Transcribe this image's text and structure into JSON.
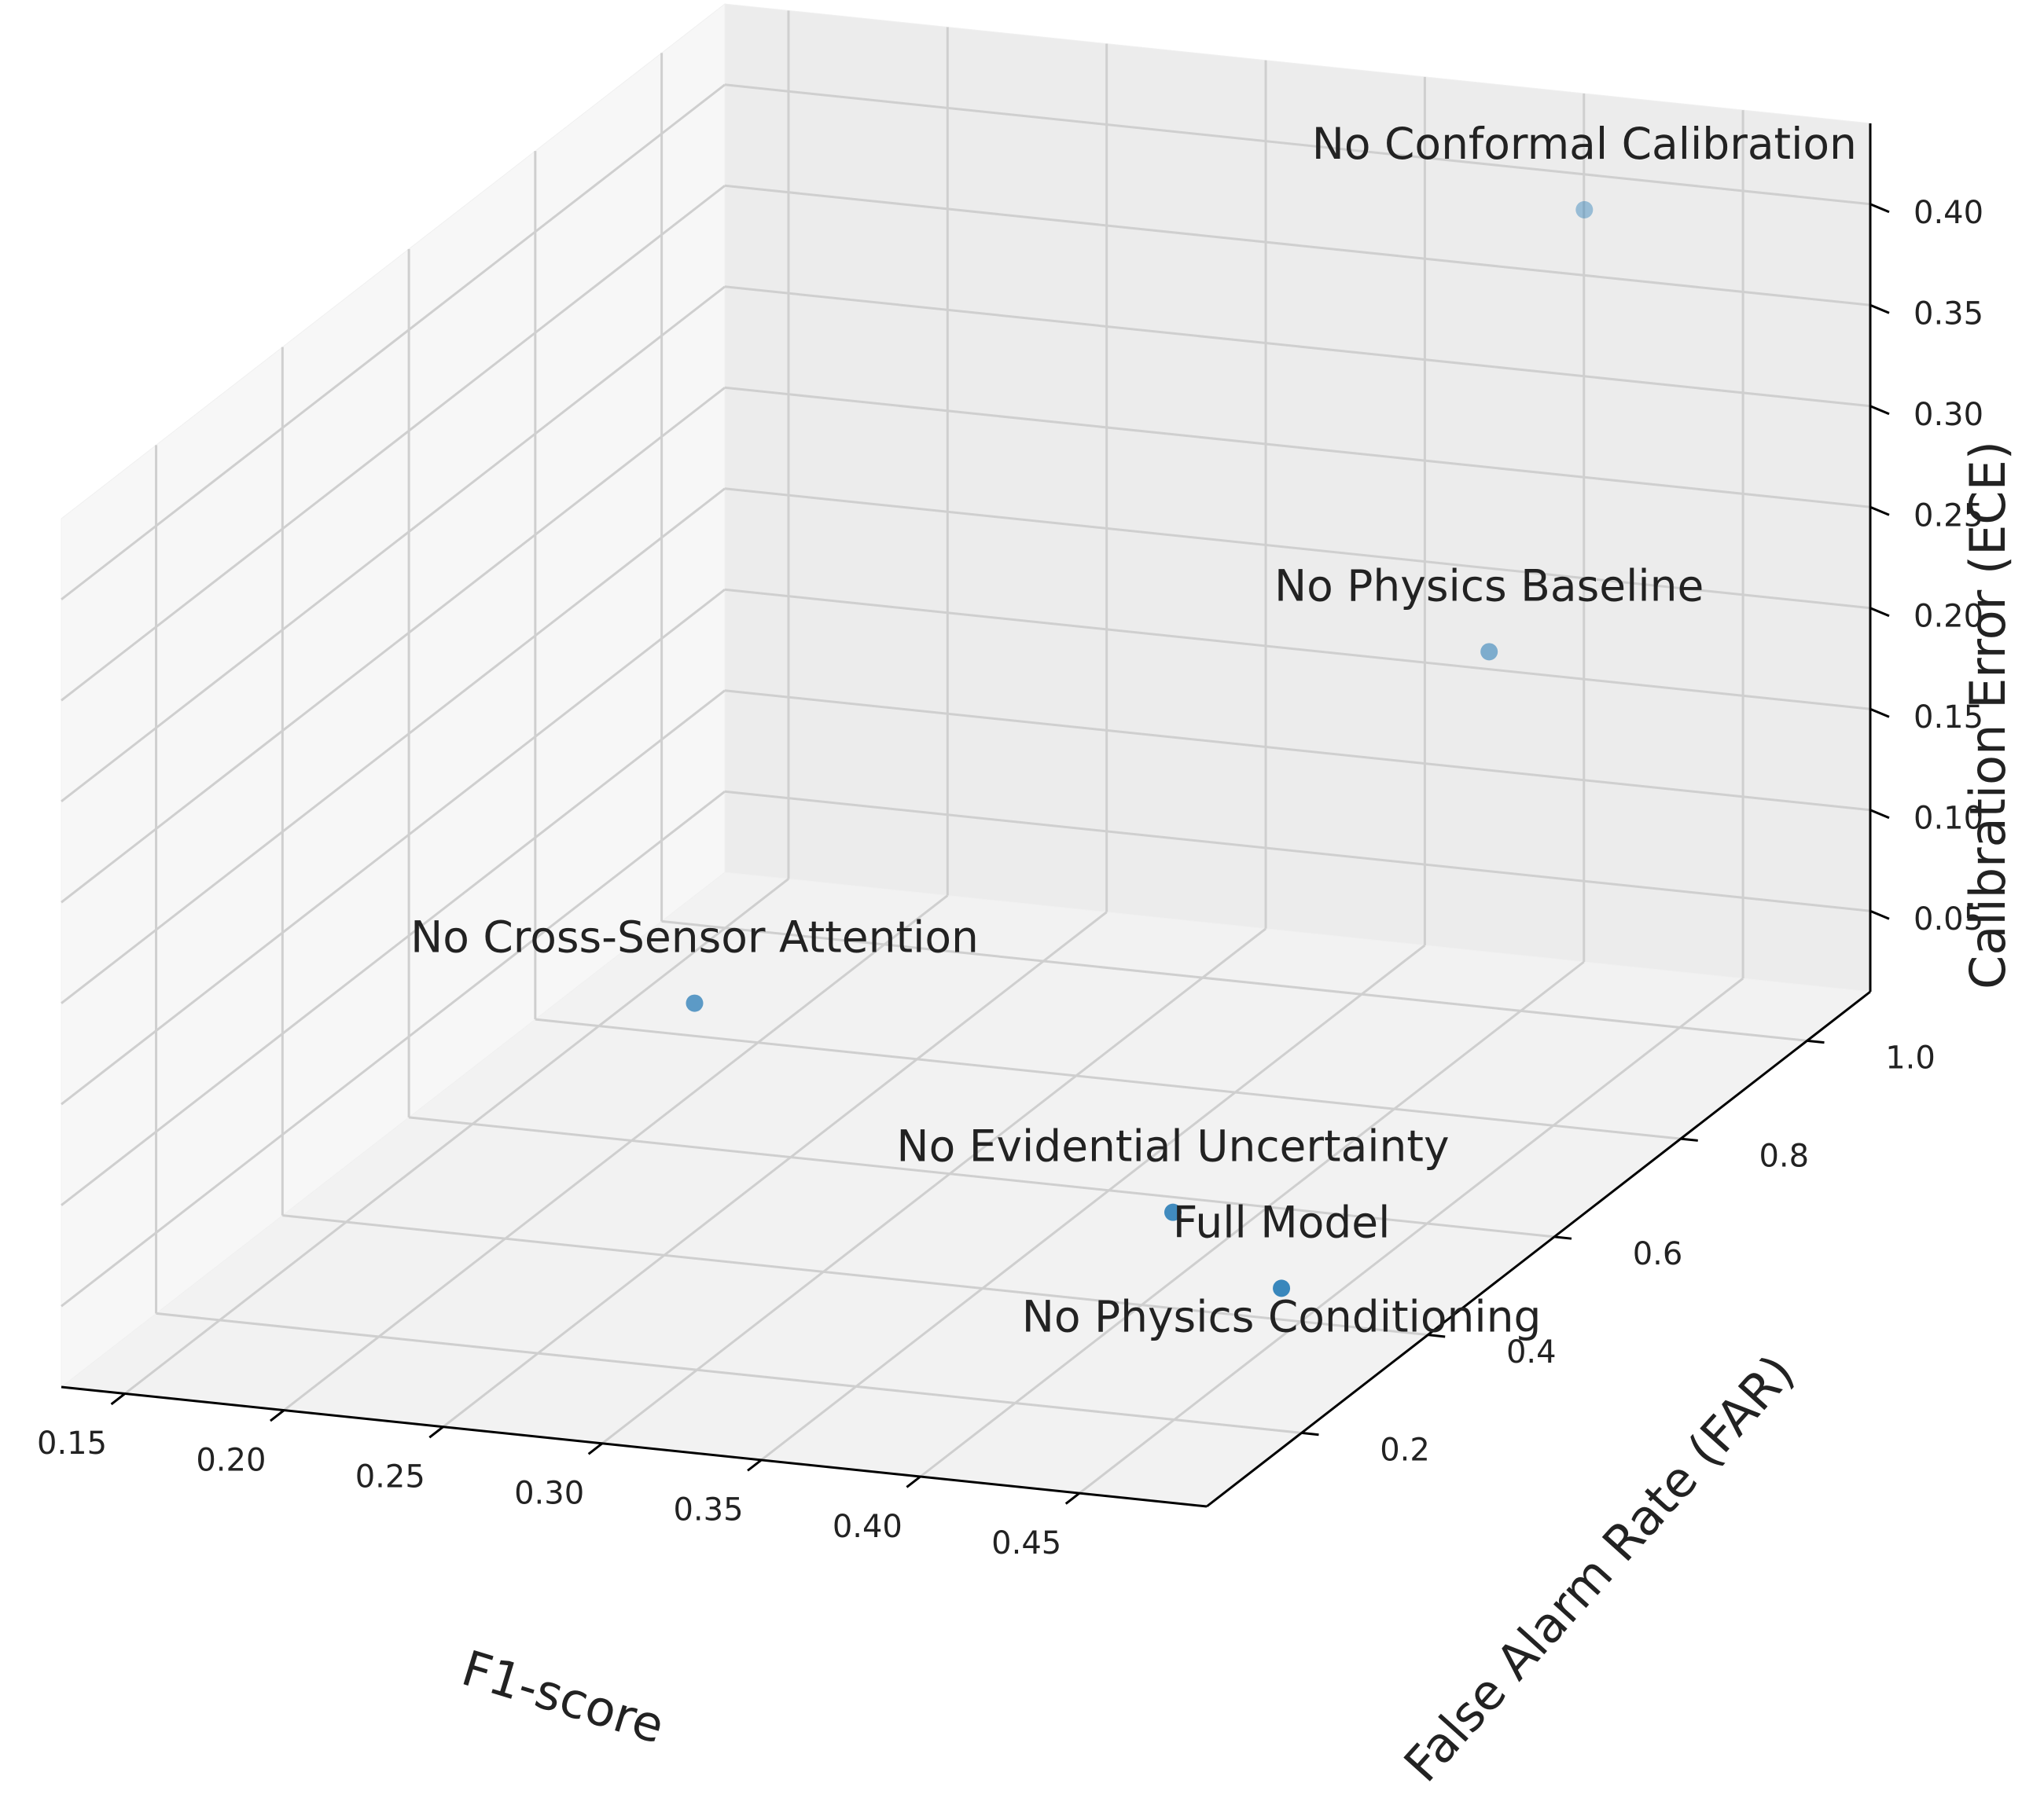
{
  "chart_data": {
    "type": "scatter",
    "projection": "3d",
    "xlabel": "F1-score",
    "ylabel": "False Alarm Rate (FAR)",
    "zlabel": "Calibration Error (ECE)",
    "xlim": [
      0.13,
      0.49
    ],
    "ylim": [
      0.05,
      1.1
    ],
    "zlim": [
      0.01,
      0.44
    ],
    "x_ticks": [
      "0.15",
      "0.20",
      "0.25",
      "0.30",
      "0.35",
      "0.40",
      "0.45"
    ],
    "y_ticks": [
      "0.2",
      "0.4",
      "0.6",
      "0.8",
      "1.0"
    ],
    "z_ticks": [
      "0.05",
      "0.10",
      "0.15",
      "0.20",
      "0.25",
      "0.30",
      "0.35",
      "0.40"
    ],
    "grid": true,
    "color": "#1f77b4",
    "points": [
      {
        "label": "No Conformal Calibration",
        "x": 0.42,
        "y": 1.0,
        "z": 0.41
      },
      {
        "label": "No Physics Baseline",
        "x": 0.4,
        "y": 0.95,
        "z": 0.2
      },
      {
        "label": "No Cross-Sensor Attention",
        "x": 0.19,
        "y": 0.75,
        "z": 0.04
      },
      {
        "label": "No Evidential Uncertainty",
        "x": 0.39,
        "y": 0.5,
        "z": 0.03
      },
      {
        "label": "Full Model",
        "x": 0.44,
        "y": 0.42,
        "z": 0.02
      },
      {
        "label": "No Physics Conditioning",
        "x": 0.44,
        "y": 0.42,
        "z": 0.02
      }
    ]
  }
}
